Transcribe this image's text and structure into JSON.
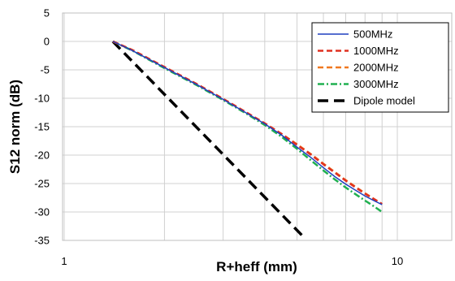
{
  "chart_data": {
    "type": "line",
    "xlabel": "R+heff (mm)",
    "ylabel": "S12 norm (dB)",
    "x_scale": "log",
    "xlim": [
      1,
      15
    ],
    "ylim": [
      -35,
      5
    ],
    "x_ticks": [
      1,
      10
    ],
    "x_minor_gridlines": [
      2,
      3,
      4,
      5,
      6,
      7,
      8,
      9
    ],
    "y_ticks": [
      5,
      0,
      -5,
      -10,
      -15,
      -20,
      -25,
      -30,
      -35
    ],
    "grid": true,
    "legend_position": "top-right",
    "series": [
      {
        "name": "500MHz",
        "color": "#1f3fbf",
        "dash": "solid",
        "x": [
          1.4,
          1.6,
          2.0,
          2.5,
          3.0,
          3.5,
          4.0,
          4.5,
          5.0,
          5.5,
          6.0,
          6.5,
          7.0,
          7.5,
          8.0,
          8.5,
          9.0
        ],
        "y": [
          0,
          -1.6,
          -4.6,
          -7.6,
          -10.2,
          -12.5,
          -14.5,
          -16.5,
          -18.6,
          -20.4,
          -22.2,
          -23.8,
          -25.1,
          -26.2,
          -27.2,
          -28.0,
          -28.7
        ]
      },
      {
        "name": "1000MHz",
        "color": "#e03020",
        "dash": "dashed",
        "x": [
          1.4,
          1.6,
          2.0,
          2.5,
          3.0,
          3.5,
          4.0,
          4.5,
          5.0,
          5.5,
          6.0,
          6.5,
          7.0,
          7.5,
          8.0,
          8.5,
          9.0
        ],
        "y": [
          0,
          -1.5,
          -4.5,
          -7.5,
          -10.1,
          -12.4,
          -14.4,
          -16.3,
          -18.2,
          -19.9,
          -21.6,
          -23.1,
          -24.5,
          -25.7,
          -26.8,
          -27.7,
          -28.6
        ]
      },
      {
        "name": "2000MHz",
        "color": "#f07820",
        "dash": "dashed",
        "x": [
          1.4,
          1.6,
          2.0,
          2.5,
          3.0,
          3.5,
          4.0,
          4.5,
          5.0,
          5.5,
          6.0,
          6.5,
          7.0,
          7.5,
          8.0,
          8.5,
          9.0
        ],
        "y": [
          0,
          -1.5,
          -4.5,
          -7.5,
          -10.1,
          -12.4,
          -14.4,
          -16.3,
          -18.1,
          -19.8,
          -21.5,
          -23.0,
          -24.4,
          -25.6,
          -26.7,
          -27.7,
          -28.6
        ]
      },
      {
        "name": "3000MHz",
        "color": "#20b050",
        "dash": "dashdot",
        "x": [
          1.4,
          1.6,
          2.0,
          2.5,
          3.0,
          3.5,
          4.0,
          4.5,
          5.0,
          5.5,
          6.0,
          6.5,
          7.0,
          7.5,
          8.0,
          8.5,
          9.0
        ],
        "y": [
          0,
          -1.6,
          -4.7,
          -7.7,
          -10.3,
          -12.6,
          -14.7,
          -16.8,
          -18.9,
          -20.9,
          -22.7,
          -24.3,
          -25.7,
          -26.9,
          -28.0,
          -29.0,
          -30.0
        ]
      },
      {
        "name": "Dipole model",
        "color": "#000000",
        "dash": "longdash",
        "x": [
          1.4,
          5.25
        ],
        "y": [
          0,
          -34.5
        ]
      }
    ]
  }
}
